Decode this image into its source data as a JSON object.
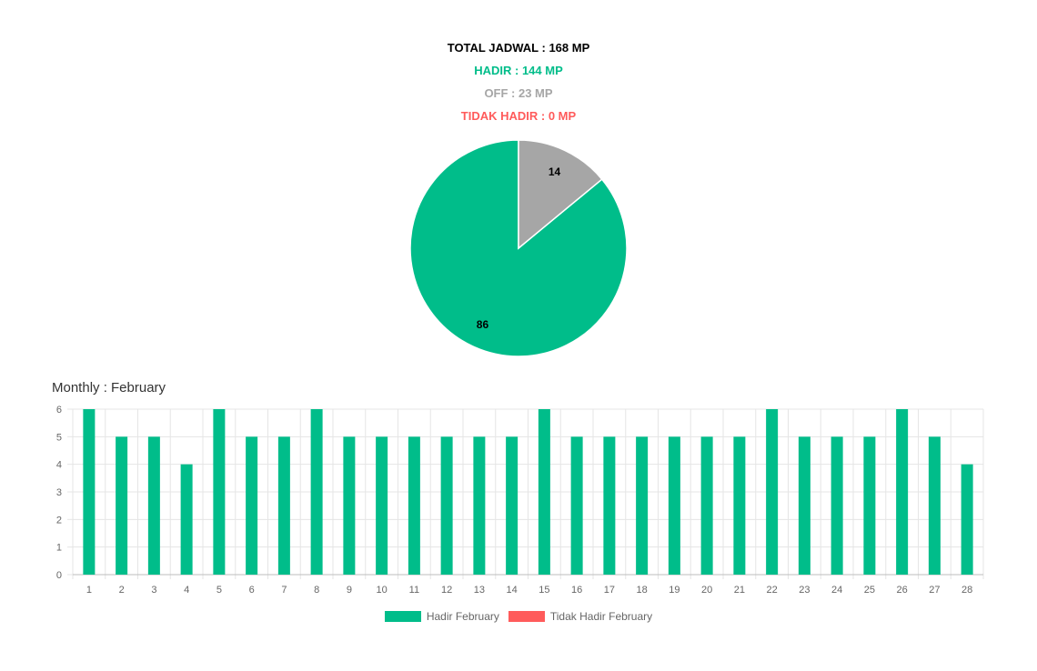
{
  "summary": {
    "total": "TOTAL JADWAL : 168 MP",
    "hadir": "HADIR : 144 MP",
    "off": "OFF : 23 MP",
    "tidak_hadir": "TIDAK HADIR : 0 MP"
  },
  "colors": {
    "hadir": "#00bd8a",
    "off": "#a6a6a6",
    "tidak_hadir": "#ff5b5b",
    "grid": "#e5e5e5",
    "tick": "#666666"
  },
  "monthly_title": "Monthly : February",
  "chart_data": [
    {
      "type": "pie",
      "slices": [
        {
          "label": "Hadir",
          "value": 86,
          "color": "#00bd8a"
        },
        {
          "label": "Off",
          "value": 14,
          "color": "#a6a6a6"
        }
      ],
      "data_labels": [
        "86",
        "14"
      ]
    },
    {
      "type": "bar",
      "categories": [
        "1",
        "2",
        "3",
        "4",
        "5",
        "6",
        "7",
        "8",
        "9",
        "10",
        "11",
        "12",
        "13",
        "14",
        "15",
        "16",
        "17",
        "18",
        "19",
        "20",
        "21",
        "22",
        "23",
        "24",
        "25",
        "26",
        "27",
        "28"
      ],
      "series": [
        {
          "name": "Hadir February",
          "color": "#00bd8a",
          "values": [
            6,
            5,
            5,
            4,
            6,
            5,
            5,
            6,
            5,
            5,
            5,
            5,
            5,
            5,
            6,
            5,
            5,
            5,
            5,
            5,
            5,
            6,
            5,
            5,
            5,
            6,
            5,
            4
          ]
        },
        {
          "name": "Tidak Hadir February",
          "color": "#ff5b5b",
          "values": [
            0,
            0,
            0,
            0,
            0,
            0,
            0,
            0,
            0,
            0,
            0,
            0,
            0,
            0,
            0,
            0,
            0,
            0,
            0,
            0,
            0,
            0,
            0,
            0,
            0,
            0,
            0,
            0
          ]
        }
      ],
      "ylim": [
        0,
        6
      ],
      "yticks": [
        0,
        1,
        2,
        3,
        4,
        5,
        6
      ],
      "grid": true,
      "legend": "bottom"
    }
  ]
}
